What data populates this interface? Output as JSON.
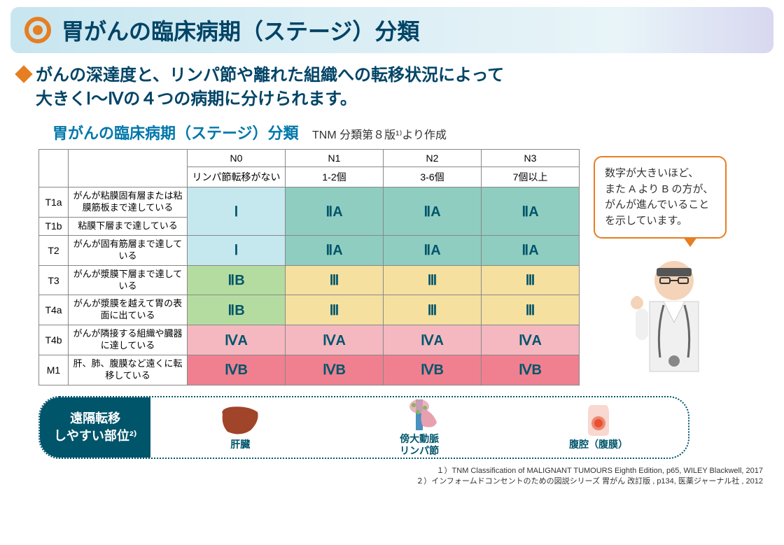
{
  "title": "胃がんの臨床病期（ステージ）分類",
  "subtitle": "がんの深達度と、リンパ節や離れた組織への転移状況によって\n大きくⅠ〜Ⅳの４つの病期に分けられます。",
  "table_title": "胃がんの臨床病期（ステージ）分類",
  "table_subtitle": "TNM 分類第８版¹⁾より作成",
  "columns": {
    "n0": "N0",
    "n1": "N1",
    "n2": "N2",
    "n3": "N3",
    "n0_desc": "リンパ節転移がない",
    "n1_desc": "1-2個",
    "n2_desc": "3-6個",
    "n3_desc": "7個以上"
  },
  "rows": [
    {
      "code": "T1a",
      "label": "がんが粘膜固有層または粘膜筋板まで達している",
      "cells": [
        "Ⅰ",
        "ⅡA",
        "ⅡA",
        "ⅡA"
      ],
      "colors": [
        "c-lightblue",
        "c-teal",
        "c-teal",
        "c-teal"
      ],
      "merge_down": true
    },
    {
      "code": "T1b",
      "label": "粘膜下層まで達している"
    },
    {
      "code": "T2",
      "label": "がんが固有筋層まで達している",
      "cells": [
        "Ⅰ",
        "ⅡA",
        "ⅡA",
        "ⅡA"
      ],
      "colors": [
        "c-lightblue",
        "c-teal",
        "c-teal",
        "c-teal"
      ]
    },
    {
      "code": "T3",
      "label": "がんが漿膜下層まで達している",
      "cells": [
        "ⅡB",
        "Ⅲ",
        "Ⅲ",
        "Ⅲ"
      ],
      "colors": [
        "c-green",
        "c-yellow",
        "c-yellow",
        "c-yellow"
      ]
    },
    {
      "code": "T4a",
      "label": "がんが漿膜を越えて胃の表面に出ている",
      "cells": [
        "ⅡB",
        "Ⅲ",
        "Ⅲ",
        "Ⅲ"
      ],
      "colors": [
        "c-green",
        "c-yellow",
        "c-yellow",
        "c-yellow"
      ]
    },
    {
      "code": "T4b",
      "label": "がんが隣接する組織や臓器に達している",
      "cells": [
        "ⅣA",
        "ⅣA",
        "ⅣA",
        "ⅣA"
      ],
      "colors": [
        "c-pink",
        "c-pink",
        "c-pink",
        "c-pink"
      ]
    },
    {
      "code": "M1",
      "label": "肝、肺、腹膜など遠くに転移している",
      "cells": [
        "ⅣB",
        "ⅣB",
        "ⅣB",
        "ⅣB"
      ],
      "colors": [
        "c-red",
        "c-red",
        "c-red",
        "c-red"
      ]
    }
  ],
  "speech": "数字が大きいほど、\nまた A より B の方が、\nがんが進んでいることを示しています。",
  "bottom_label": "遠隔転移\nしやすい部位²⁾",
  "organs": [
    {
      "name": "肝臓"
    },
    {
      "name": "傍大動脈\nリンパ節"
    },
    {
      "name": "腹腔（腹膜）"
    }
  ],
  "refs": [
    "１）TNM Classification of MALIGNANT TUMOURS Eighth Edition, p65, WILEY Blackwell, 2017",
    "２）インフォームドコンセントのための図説シリーズ 胃がん 改訂版 , p134, 医薬ジャーナル社 , 2012"
  ],
  "colors": {
    "accent": "#e67e22",
    "title_text": "#004466",
    "table_title": "#0077aa",
    "stage_text": "#00556b",
    "c-lightblue": "#c5e8ef",
    "c-teal": "#8fcdc0",
    "c-green": "#b5dca0",
    "c-yellow": "#f5e0a0",
    "c-pink": "#f5b8c0",
    "c-red": "#f08090"
  }
}
